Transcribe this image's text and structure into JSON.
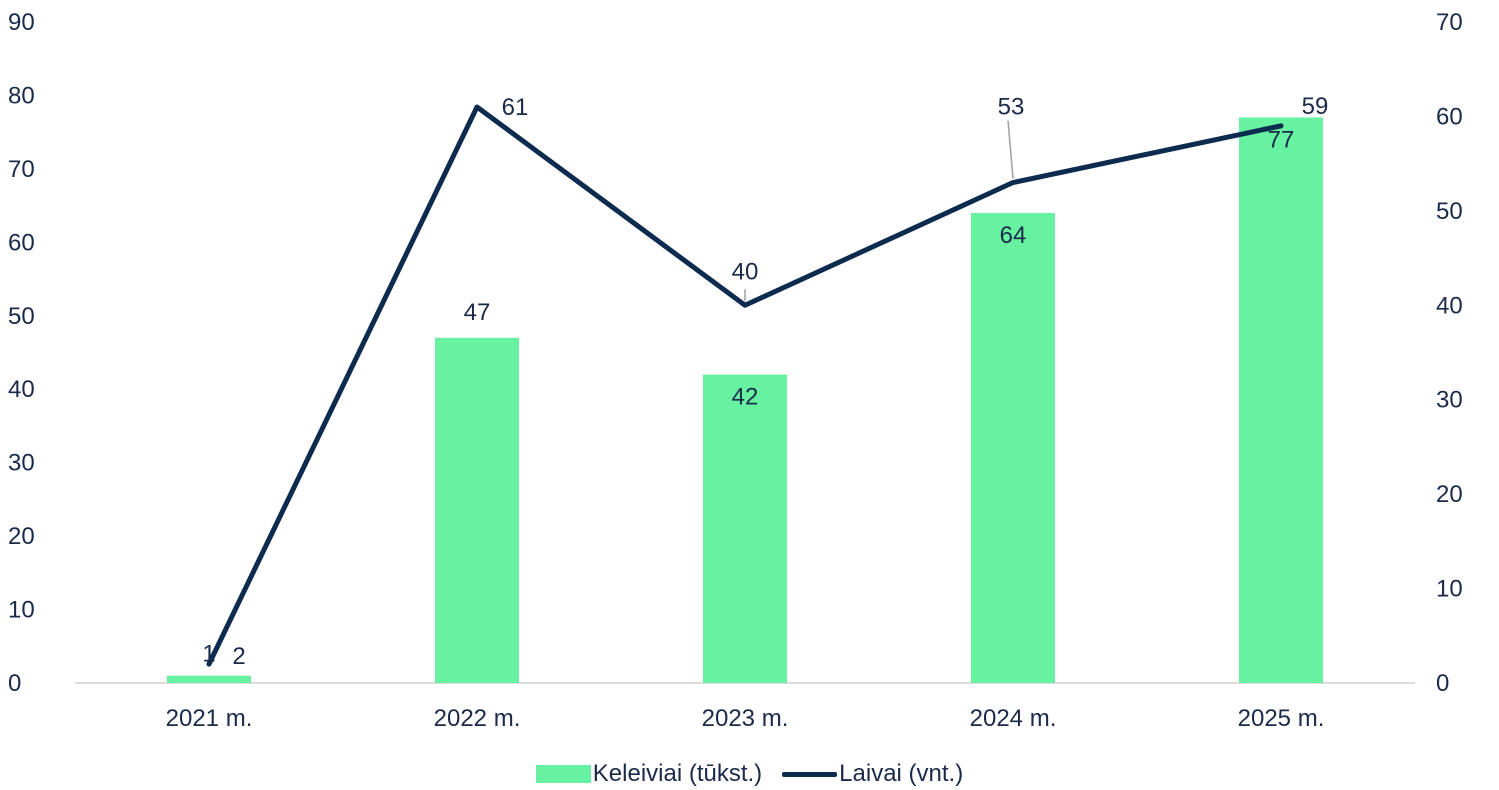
{
  "chart_data": {
    "type": "bar",
    "categories": [
      "2021 m.",
      "2022 m.",
      "2023 m.",
      "2024 m.",
      "2025 m."
    ],
    "series": [
      {
        "name": "Keleiviai (tūkst.)",
        "type": "bar",
        "axis": "left",
        "values": [
          1,
          47,
          42,
          64,
          77
        ],
        "color": "#66f2a0"
      },
      {
        "name": "Laivai (vnt.)",
        "type": "line",
        "axis": "right",
        "values": [
          2,
          61,
          40,
          53,
          59
        ],
        "color": "#0d2b4e"
      }
    ],
    "y_left": {
      "min": 0,
      "max": 90,
      "ticks": [
        "0",
        "10",
        "20",
        "30",
        "40",
        "50",
        "60",
        "70",
        "80",
        "90"
      ]
    },
    "y_right": {
      "min": 0,
      "max": 70,
      "ticks": [
        "0",
        "10",
        "20",
        "30",
        "40",
        "50",
        "60",
        "70"
      ]
    },
    "grid": false,
    "legend_position": "bottom",
    "title": "",
    "xlabel": "",
    "ylabel": ""
  }
}
